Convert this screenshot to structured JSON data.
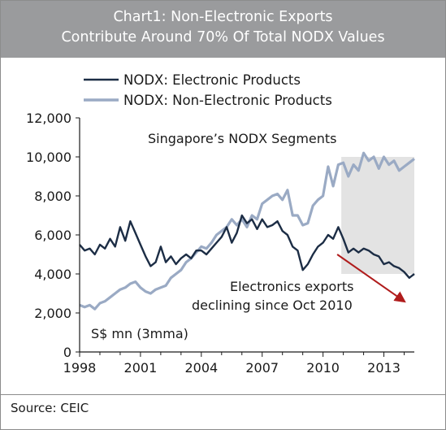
{
  "header": {
    "title_line1": "Chart1: Non-Electronic Exports",
    "title_line2": "Contribute Around 70% Of Total NODX Values"
  },
  "footer": {
    "source": "Source: CEIC"
  },
  "chart_data": {
    "type": "line",
    "title": "Chart1: Non-Electronic Exports Contribute Around 70% Of Total NODX Values",
    "inner_title": "Singapore’s NODX Segments",
    "unit_label": "S$ mn (3mma)",
    "xlabel": "",
    "ylabel": "",
    "xlim": [
      1998,
      2014.5
    ],
    "ylim": [
      0,
      12000
    ],
    "x_ticks": [
      1998,
      2001,
      2004,
      2007,
      2010,
      2013
    ],
    "x_tick_labels": [
      "1998",
      "2001",
      "2004",
      "2007",
      "2010",
      "2013"
    ],
    "y_ticks": [
      0,
      2000,
      4000,
      6000,
      8000,
      10000,
      12000
    ],
    "y_tick_labels": [
      "0",
      "2,000",
      "4,000",
      "6,000",
      "8,000",
      "10,000",
      "12,000"
    ],
    "grid": false,
    "legend_placement": "top-left",
    "annotations": {
      "shaded_range": {
        "x": [
          2010.9,
          2014.5
        ]
      },
      "arrow_text_line1": "Electronics exports",
      "arrow_text_line2": "declining since Oct 2010",
      "arrow_from": [
        2010.7,
        5000
      ],
      "arrow_to": [
        2014.0,
        2600
      ],
      "arrow_color": "#b01c1c"
    },
    "series": [
      {
        "name": "NODX: Electronic Products",
        "color": "#1c2d45",
        "x": [
          1998.0,
          1998.25,
          1998.5,
          1998.75,
          1999.0,
          1999.25,
          1999.5,
          1999.75,
          2000.0,
          2000.25,
          2000.5,
          2000.75,
          2001.0,
          2001.25,
          2001.5,
          2001.75,
          2002.0,
          2002.25,
          2002.5,
          2002.75,
          2003.0,
          2003.25,
          2003.5,
          2003.75,
          2004.0,
          2004.25,
          2004.5,
          2004.75,
          2005.0,
          2005.25,
          2005.5,
          2005.75,
          2006.0,
          2006.25,
          2006.5,
          2006.75,
          2007.0,
          2007.25,
          2007.5,
          2007.75,
          2008.0,
          2008.25,
          2008.5,
          2008.75,
          2009.0,
          2009.25,
          2009.5,
          2009.75,
          2010.0,
          2010.25,
          2010.5,
          2010.75,
          2011.0,
          2011.25,
          2011.5,
          2011.75,
          2012.0,
          2012.25,
          2012.5,
          2012.75,
          2013.0,
          2013.25,
          2013.5,
          2013.75,
          2014.0,
          2014.25,
          2014.5
        ],
        "values": [
          5500,
          5200,
          5300,
          5000,
          5500,
          5300,
          5800,
          5400,
          6400,
          5700,
          6700,
          6100,
          5500,
          4900,
          4400,
          4600,
          5400,
          4600,
          4900,
          4500,
          4800,
          5000,
          4800,
          5200,
          5200,
          5000,
          5300,
          5600,
          5900,
          6400,
          5600,
          6100,
          7000,
          6600,
          6800,
          6300,
          6800,
          6400,
          6500,
          6700,
          6200,
          6000,
          5400,
          5200,
          4200,
          4500,
          5000,
          5400,
          5600,
          6000,
          5800,
          6400,
          5800,
          5100,
          5300,
          5100,
          5300,
          5200,
          5000,
          4900,
          4500,
          4600,
          4400,
          4300,
          4100,
          3800,
          4000
        ]
      },
      {
        "name": "NODX: Non-Electronic Products",
        "color": "#9aaac4",
        "x": [
          1998.0,
          1998.25,
          1998.5,
          1998.75,
          1999.0,
          1999.25,
          1999.5,
          1999.75,
          2000.0,
          2000.25,
          2000.5,
          2000.75,
          2001.0,
          2001.25,
          2001.5,
          2001.75,
          2002.0,
          2002.25,
          2002.5,
          2002.75,
          2003.0,
          2003.25,
          2003.5,
          2003.75,
          2004.0,
          2004.25,
          2004.5,
          2004.75,
          2005.0,
          2005.25,
          2005.5,
          2005.75,
          2006.0,
          2006.25,
          2006.5,
          2006.75,
          2007.0,
          2007.25,
          2007.5,
          2007.75,
          2008.0,
          2008.25,
          2008.5,
          2008.75,
          2009.0,
          2009.25,
          2009.5,
          2009.75,
          2010.0,
          2010.25,
          2010.5,
          2010.75,
          2011.0,
          2011.25,
          2011.5,
          2011.75,
          2012.0,
          2012.25,
          2012.5,
          2012.75,
          2013.0,
          2013.25,
          2013.5,
          2013.75,
          2014.0,
          2014.25,
          2014.5
        ],
        "values": [
          2400,
          2300,
          2400,
          2200,
          2500,
          2600,
          2800,
          3000,
          3200,
          3300,
          3500,
          3600,
          3300,
          3100,
          3000,
          3200,
          3300,
          3400,
          3800,
          4000,
          4200,
          4600,
          4800,
          5100,
          5400,
          5300,
          5600,
          6000,
          6200,
          6400,
          6800,
          6500,
          6800,
          6400,
          7000,
          6800,
          7600,
          7800,
          8000,
          8100,
          7800,
          8300,
          7000,
          7000,
          6500,
          6600,
          7500,
          7800,
          8000,
          9500,
          8500,
          9600,
          9700,
          9000,
          9600,
          9300,
          10200,
          9800,
          10000,
          9400,
          10000,
          9600,
          9800,
          9300,
          9500,
          9700,
          9900
        ]
      }
    ]
  }
}
